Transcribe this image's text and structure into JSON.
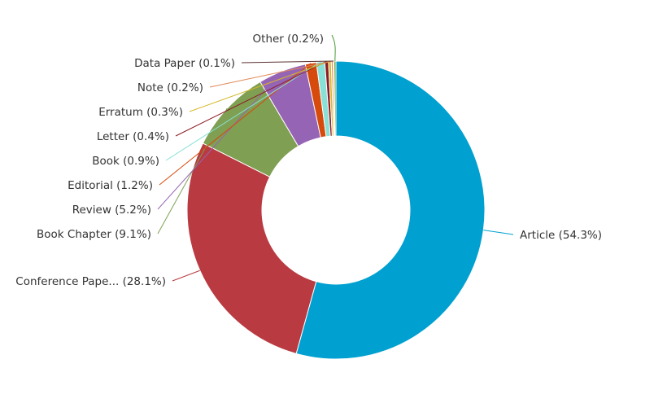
{
  "chart_data": {
    "type": "pie",
    "variant": "donut",
    "title": "",
    "start": "top, clockwise",
    "slices": [
      {
        "label": "Article (54.3%)",
        "value": 54.3,
        "color": "#00a0d0"
      },
      {
        "label": "Conference Pape... (28.1%)",
        "value": 28.1,
        "color": "#b93a40"
      },
      {
        "label": "Book Chapter (9.1%)",
        "value": 9.1,
        "color": "#7f9f52"
      },
      {
        "label": "Review (5.2%)",
        "value": 5.2,
        "color": "#9664b4"
      },
      {
        "label": "Editorial (1.2%)",
        "value": 1.2,
        "color": "#d64a0c"
      },
      {
        "label": "Book (0.9%)",
        "value": 0.9,
        "color": "#88e0d6"
      },
      {
        "label": "Letter (0.4%)",
        "value": 0.4,
        "color": "#8c1c24"
      },
      {
        "label": "Erratum (0.3%)",
        "value": 0.3,
        "color": "#d6b828"
      },
      {
        "label": "Note (0.2%)",
        "value": 0.2,
        "color": "#e08a58"
      },
      {
        "label": "Data Paper (0.1%)",
        "value": 0.1,
        "color": "#5a2e2e"
      },
      {
        "label": "Other (0.2%)",
        "value": 0.2,
        "color": "#4a9a34"
      }
    ]
  }
}
